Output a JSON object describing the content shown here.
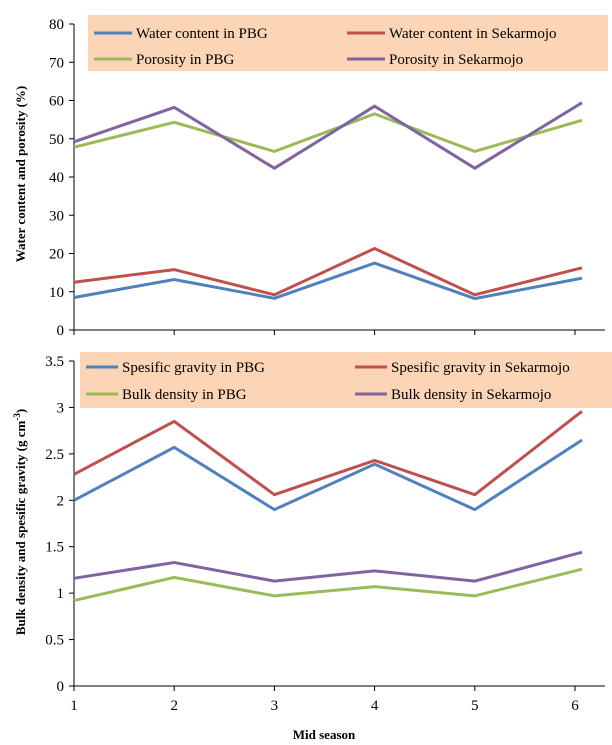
{
  "chart_data": [
    {
      "type": "line",
      "title": "",
      "xlabel": "",
      "ylabel": "Water content and porosity (%)",
      "x": [
        1,
        2,
        3,
        4,
        5,
        6
      ],
      "xlim": [
        1,
        6
      ],
      "ylim": [
        0,
        80
      ],
      "yticks": [
        0,
        10,
        20,
        30,
        40,
        50,
        60,
        70,
        80
      ],
      "ytick_labels": [
        "0",
        "10",
        "20",
        "30",
        "40",
        "50",
        "60",
        "70",
        "80"
      ],
      "grid": false,
      "legend_position": "top",
      "legend_background": "#FBD5B5",
      "series": [
        {
          "name": "Water content in PBG",
          "color": "#4F81BD",
          "values": [
            8.5,
            13.2,
            8.3,
            17.5,
            8.2,
            13.2
          ]
        },
        {
          "name": "Water content in Sekarmojo",
          "color": "#C0504D",
          "values": [
            12.5,
            15.8,
            9.2,
            21.3,
            9.2,
            15.8
          ]
        },
        {
          "name": "Porosity in PBG",
          "color": "#9BBB59",
          "values": [
            47.8,
            54.3,
            46.7,
            56.5,
            46.7,
            54.3
          ]
        },
        {
          "name": "Porosity in Sekarmojo",
          "color": "#8064A2",
          "values": [
            49.2,
            58.2,
            42.3,
            58.5,
            42.3,
            58.3
          ]
        }
      ]
    },
    {
      "type": "line",
      "title": "",
      "xlabel": "Mid season",
      "ylabel_prefix": "Bulk density and spesific gravity (g cm",
      "ylabel_sup": "-3",
      "ylabel_suffix": ")",
      "x": [
        1,
        2,
        3,
        4,
        5,
        6
      ],
      "xtick_labels": [
        "1",
        "2",
        "3",
        "4",
        "5",
        "6"
      ],
      "xlim": [
        1,
        6
      ],
      "ylim": [
        0,
        3.5
      ],
      "yticks": [
        0,
        0.5,
        1,
        1.5,
        2,
        2.5,
        3,
        3.5
      ],
      "ytick_labels": [
        "0",
        "0.5",
        "1",
        "1.5",
        "2",
        "2.5",
        "3",
        "3.5"
      ],
      "grid": false,
      "legend_position": "top",
      "legend_background": "#FBD5B5",
      "series": [
        {
          "name": "Spesific gravity in PBG",
          "color": "#4F81BD",
          "values": [
            2.0,
            2.57,
            1.9,
            2.39,
            1.9,
            2.6
          ]
        },
        {
          "name": "Spesific gravity in Sekarmojo",
          "color": "#C0504D",
          "values": [
            2.28,
            2.85,
            2.06,
            2.43,
            2.06,
            2.9
          ]
        },
        {
          "name": "Bulk density in PBG",
          "color": "#9BBB59",
          "values": [
            0.92,
            1.17,
            0.97,
            1.07,
            0.97,
            1.24
          ]
        },
        {
          "name": "Bulk density in Sekarmojo",
          "color": "#8064A2",
          "values": [
            1.16,
            1.33,
            1.13,
            1.24,
            1.13,
            1.42
          ]
        }
      ]
    }
  ]
}
